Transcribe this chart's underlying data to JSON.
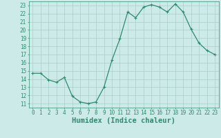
{
  "x": [
    0,
    1,
    2,
    3,
    4,
    5,
    6,
    7,
    8,
    9,
    10,
    11,
    12,
    13,
    14,
    15,
    16,
    17,
    18,
    19,
    20,
    21,
    22,
    23
  ],
  "y": [
    14.7,
    14.7,
    13.9,
    13.6,
    14.2,
    11.9,
    11.2,
    11.0,
    11.2,
    13.0,
    16.3,
    18.9,
    22.2,
    21.5,
    22.8,
    23.1,
    22.8,
    22.2,
    23.2,
    22.2,
    20.1,
    18.4,
    17.5,
    17.0
  ],
  "line_color": "#2e8b6e",
  "marker": "+",
  "marker_size": 3,
  "marker_lw": 0.8,
  "line_width": 0.9,
  "bg_color": "#cceae7",
  "grid_color": "#aacccc",
  "xlabel": "Humidex (Indice chaleur)",
  "xlim": [
    -0.5,
    23.5
  ],
  "ylim": [
    10.5,
    23.5
  ],
  "yticks": [
    11,
    12,
    13,
    14,
    15,
    16,
    17,
    18,
    19,
    20,
    21,
    22,
    23
  ],
  "xticks": [
    0,
    1,
    2,
    3,
    4,
    5,
    6,
    7,
    8,
    9,
    10,
    11,
    12,
    13,
    14,
    15,
    16,
    17,
    18,
    19,
    20,
    21,
    22,
    23
  ],
  "tick_label_fontsize": 5.5,
  "xlabel_fontsize": 7.5,
  "tick_color": "#2e8b6e",
  "axis_color": "#2e8b6e"
}
